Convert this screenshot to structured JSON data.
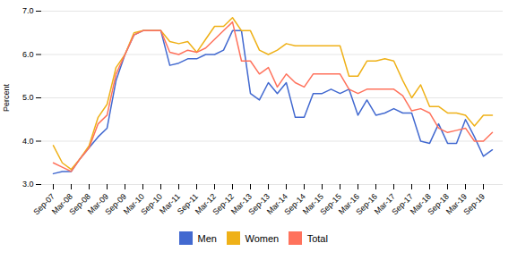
{
  "chart_data": {
    "type": "line",
    "ylabel": "Percent",
    "categories": [
      "Sep-07",
      null,
      "Mar-08",
      null,
      "Sep-08",
      null,
      "Mar-09",
      null,
      "Sep-09",
      null,
      "Mar-10",
      null,
      "Sep-10",
      null,
      "Mar-11",
      null,
      "Sep-11",
      null,
      "Mar-12",
      null,
      "Sep-12",
      null,
      "Mar-13",
      null,
      "Sep-13",
      null,
      "Mar-14",
      null,
      "Sep-14",
      null,
      "Mar-15",
      null,
      "Sep-15",
      null,
      "Mar-16",
      null,
      "Sep-16",
      null,
      "Mar-17",
      null,
      "Sep-17",
      null,
      "Mar-18",
      null,
      "Sep-18",
      null,
      "Mar-19",
      null,
      "Sep-19",
      null
    ],
    "series": [
      {
        "name": "Men",
        "values": [
          3.25,
          3.3,
          3.3,
          3.6,
          3.85,
          4.1,
          4.3,
          5.4,
          6.0,
          6.45,
          6.55,
          6.55,
          6.55,
          5.75,
          5.8,
          5.9,
          5.9,
          6.0,
          6.0,
          6.1,
          6.55,
          6.55,
          5.1,
          4.95,
          5.35,
          5.1,
          5.35,
          4.55,
          4.55,
          5.1,
          5.1,
          5.2,
          5.1,
          5.2,
          4.6,
          4.95,
          4.6,
          4.65,
          4.75,
          4.65,
          4.65,
          4.0,
          3.95,
          4.4,
          3.95,
          3.95,
          4.5,
          4.1,
          3.65,
          3.8
        ]
      },
      {
        "name": "Women",
        "values": [
          3.9,
          3.5,
          3.35,
          3.6,
          3.9,
          4.55,
          4.85,
          5.7,
          6.0,
          6.5,
          6.55,
          6.55,
          6.55,
          6.3,
          6.25,
          6.3,
          6.05,
          6.35,
          6.65,
          6.65,
          6.85,
          6.55,
          6.55,
          6.1,
          6.0,
          6.1,
          6.25,
          6.2,
          6.2,
          6.2,
          6.2,
          6.2,
          6.2,
          5.5,
          5.5,
          5.85,
          5.85,
          5.9,
          5.85,
          5.4,
          5.0,
          5.3,
          4.8,
          4.8,
          4.65,
          4.65,
          4.6,
          4.35,
          4.6,
          4.6
        ]
      },
      {
        "name": "Total",
        "values": [
          3.5,
          3.4,
          3.3,
          3.6,
          3.85,
          4.4,
          4.6,
          5.55,
          6.0,
          6.45,
          6.55,
          6.55,
          6.55,
          6.05,
          6.0,
          6.1,
          6.05,
          6.15,
          6.35,
          6.55,
          6.75,
          5.85,
          5.85,
          5.55,
          5.7,
          5.25,
          5.55,
          5.35,
          5.25,
          5.55,
          5.55,
          5.55,
          5.55,
          5.2,
          5.1,
          5.2,
          5.2,
          5.2,
          5.2,
          5.05,
          4.7,
          4.75,
          4.65,
          4.3,
          4.2,
          4.25,
          4.3,
          4.0,
          4.0,
          4.2
        ]
      }
    ],
    "ylim": [
      3,
      7
    ],
    "yticks": [
      3,
      4,
      5,
      6,
      7
    ],
    "grid": true,
    "legend": "bottom"
  }
}
